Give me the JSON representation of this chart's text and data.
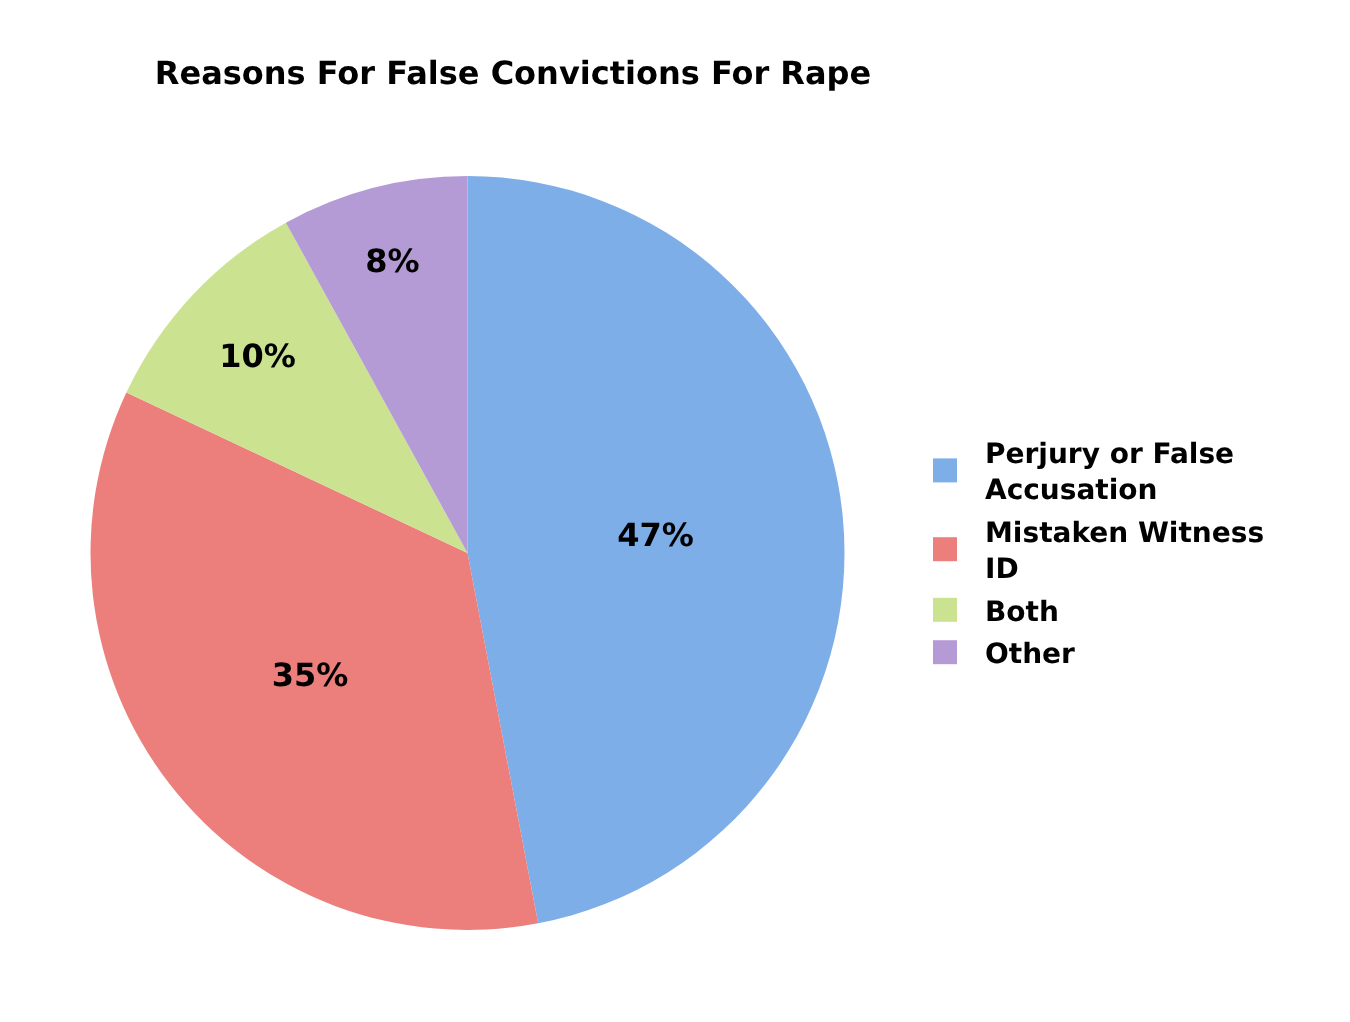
{
  "chart_data": {
    "type": "pie",
    "title": "Reasons For False Convictions For Rape",
    "categories": [
      "Perjury or False Accusation",
      "Mistaken Witness ID",
      "Both",
      "Other"
    ],
    "values": [
      47,
      35,
      10,
      8
    ],
    "value_labels": [
      "47%",
      "35%",
      "10%",
      "8%"
    ],
    "colors": [
      "#7eaee8",
      "#ec7f7c",
      "#cbe291",
      "#b59bd6"
    ],
    "legend": "right"
  }
}
